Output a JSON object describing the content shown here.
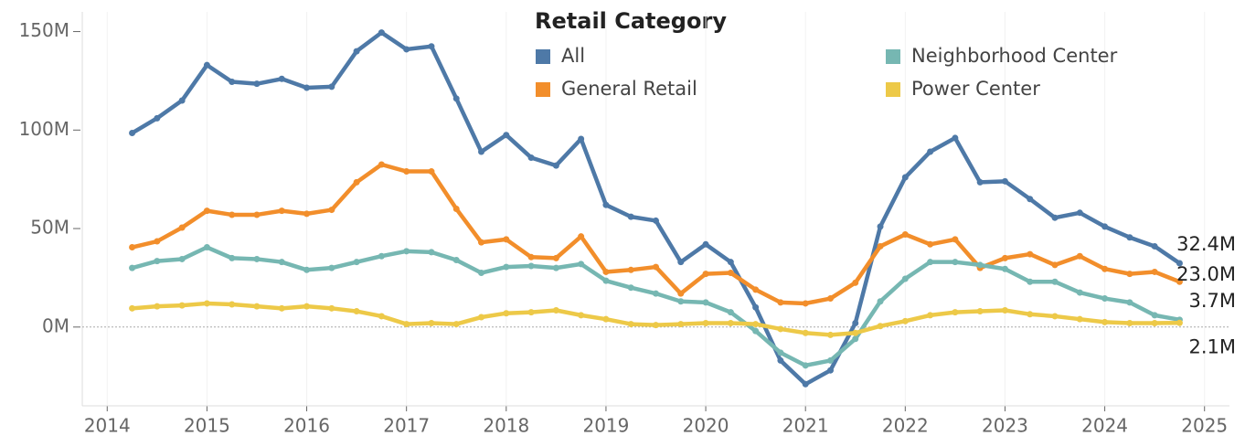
{
  "chart_data": {
    "type": "line",
    "legend_title": "Retail Category",
    "x": [
      2014.25,
      2014.5,
      2014.75,
      2015,
      2015.25,
      2015.5,
      2015.75,
      2016,
      2016.25,
      2016.5,
      2016.75,
      2017,
      2017.25,
      2017.5,
      2017.75,
      2018,
      2018.25,
      2018.5,
      2018.75,
      2019,
      2019.25,
      2019.5,
      2019.75,
      2020,
      2020.25,
      2020.5,
      2020.75,
      2021,
      2021.25,
      2021.5,
      2021.75,
      2022,
      2022.25,
      2022.5,
      2022.75,
      2023,
      2023.25,
      2023.5,
      2023.75,
      2024,
      2024.25,
      2024.5,
      2024.75
    ],
    "series": [
      {
        "name": "All",
        "color": "#4e79a7",
        "values": [
          98.5,
          106,
          115,
          133,
          124.5,
          123.5,
          126,
          121.5,
          122,
          140,
          149.5,
          141,
          142.5,
          116,
          89,
          97.5,
          86,
          82,
          95.5,
          62,
          56,
          54,
          33,
          42,
          33,
          10,
          -17,
          -29,
          -22,
          2,
          51,
          76,
          89,
          96,
          73.5,
          74,
          65,
          55.5,
          58,
          51,
          45.5,
          41,
          32.4
        ],
        "value_labels": [
          null,
          null,
          null,
          null,
          null,
          null,
          null,
          null,
          null,
          null,
          null,
          null,
          null,
          null,
          null,
          null,
          null,
          null,
          null,
          null,
          null,
          null,
          null,
          null,
          null,
          null,
          null,
          null,
          null,
          null,
          null,
          null,
          null,
          null,
          null,
          null,
          null,
          null,
          null,
          null,
          null,
          null,
          "32.4M"
        ]
      },
      {
        "name": "General Retail",
        "color": "#f28e2b",
        "values": [
          40.5,
          43.5,
          50.5,
          59,
          57,
          57,
          59,
          57.5,
          59.5,
          73.5,
          82.5,
          79,
          79,
          60,
          43,
          44.5,
          35.5,
          35,
          46,
          28,
          29,
          30.5,
          17,
          27,
          27.5,
          19,
          12.5,
          12,
          14.5,
          22.5,
          41,
          47,
          42,
          44.5,
          30,
          35,
          37,
          31.5,
          36,
          29.5,
          27,
          28,
          23.0
        ],
        "value_labels": [
          null,
          null,
          null,
          null,
          null,
          null,
          null,
          null,
          null,
          null,
          null,
          null,
          null,
          null,
          null,
          null,
          null,
          null,
          null,
          null,
          null,
          null,
          null,
          null,
          null,
          null,
          null,
          null,
          null,
          null,
          null,
          null,
          null,
          null,
          null,
          null,
          null,
          null,
          null,
          null,
          null,
          null,
          "23.0M"
        ]
      },
      {
        "name": "Neighborhood Center",
        "color": "#76b7b2",
        "values": [
          30,
          33.5,
          34.5,
          40.5,
          35,
          34.5,
          33,
          29,
          30,
          33,
          36,
          38.5,
          38,
          34,
          27.5,
          30.5,
          31,
          30,
          32,
          23.5,
          20,
          17,
          13,
          12.5,
          7.5,
          -2,
          -13,
          -19.5,
          -17,
          -6,
          13,
          24.5,
          33,
          33,
          31.5,
          29.5,
          23,
          23,
          17.5,
          14.5,
          12.5,
          6,
          3.7
        ],
        "value_labels": [
          null,
          null,
          null,
          null,
          null,
          null,
          null,
          null,
          null,
          null,
          null,
          null,
          null,
          null,
          null,
          null,
          null,
          null,
          null,
          null,
          null,
          null,
          null,
          null,
          null,
          null,
          null,
          null,
          null,
          null,
          null,
          null,
          null,
          null,
          null,
          null,
          null,
          null,
          null,
          null,
          null,
          null,
          "3.7M"
        ]
      },
      {
        "name": "Power Center",
        "color": "#edc948",
        "values": [
          9.5,
          10.5,
          11,
          12,
          11.5,
          10.5,
          9.5,
          10.5,
          9.5,
          8,
          5.5,
          1.5,
          2,
          1.5,
          5,
          7,
          7.5,
          8.5,
          6,
          4,
          1.5,
          1,
          1.5,
          2,
          2,
          1.5,
          -1,
          -3,
          -4,
          -3,
          0.5,
          3,
          6,
          7.5,
          8,
          8.5,
          6.5,
          5.5,
          4,
          2.5,
          2,
          2,
          2.1
        ],
        "value_labels": [
          null,
          null,
          null,
          null,
          null,
          null,
          null,
          null,
          null,
          null,
          null,
          null,
          null,
          null,
          null,
          null,
          null,
          null,
          null,
          null,
          null,
          null,
          null,
          null,
          null,
          null,
          null,
          null,
          null,
          null,
          null,
          null,
          null,
          null,
          null,
          null,
          null,
          null,
          null,
          null,
          null,
          null,
          "2.1M"
        ]
      }
    ],
    "xlim": [
      2013.75,
      2025.25
    ],
    "xticks": [
      2014,
      2015,
      2016,
      2017,
      2018,
      2019,
      2020,
      2021,
      2022,
      2023,
      2024,
      2025
    ],
    "ylim": [
      -40,
      160
    ],
    "yticks": [
      {
        "value": 0,
        "label": "0M"
      },
      {
        "value": 50,
        "label": "50M"
      },
      {
        "value": 100,
        "label": "100M"
      },
      {
        "value": 150,
        "label": "150M"
      }
    ],
    "legend": "top"
  }
}
